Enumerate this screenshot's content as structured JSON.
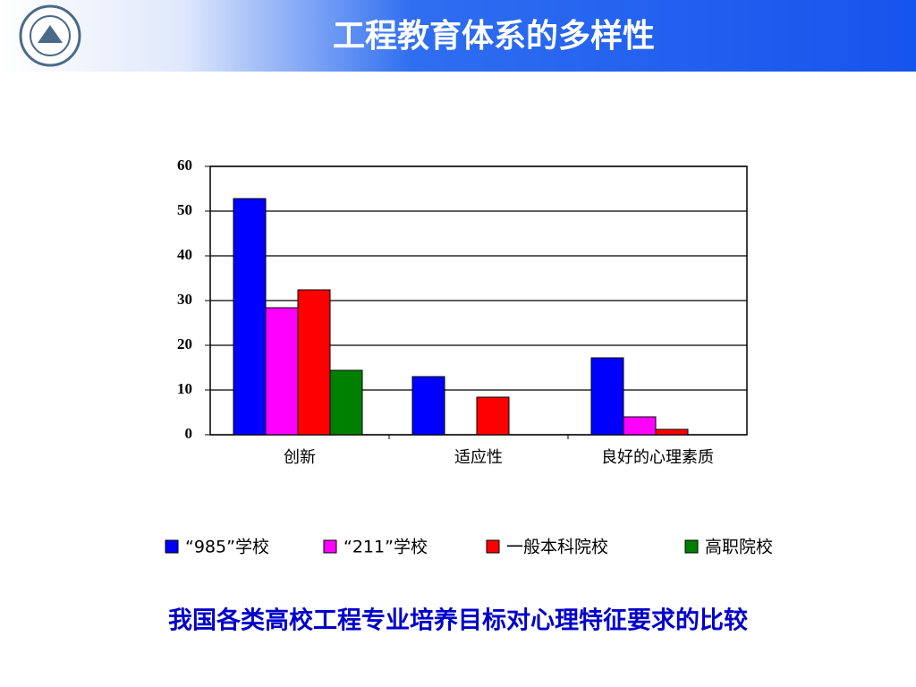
{
  "chart_data": {
    "type": "bar",
    "title": "工程教育体系的多样性",
    "caption": "我国各类高校工程专业培养目标对心理特征要求的比较",
    "categories": [
      "创新",
      "适应性",
      "良好的心理素质"
    ],
    "series": [
      {
        "name": "“985”学校",
        "color": "#0000ff",
        "values": [
          52.8,
          13,
          17.2
        ]
      },
      {
        "name": "“211”学校",
        "color": "#ff00ff",
        "values": [
          28.4,
          0,
          4
        ]
      },
      {
        "name": "一般本科院校",
        "color": "#ff0000",
        "values": [
          32.4,
          8.4,
          1.2
        ]
      },
      {
        "name": "高职院校",
        "color": "#008000",
        "values": [
          14.4,
          0,
          0
        ]
      }
    ],
    "ylim": [
      0,
      60
    ],
    "yticks": [
      0,
      10,
      20,
      30,
      40,
      50,
      60
    ],
    "grid": true
  }
}
